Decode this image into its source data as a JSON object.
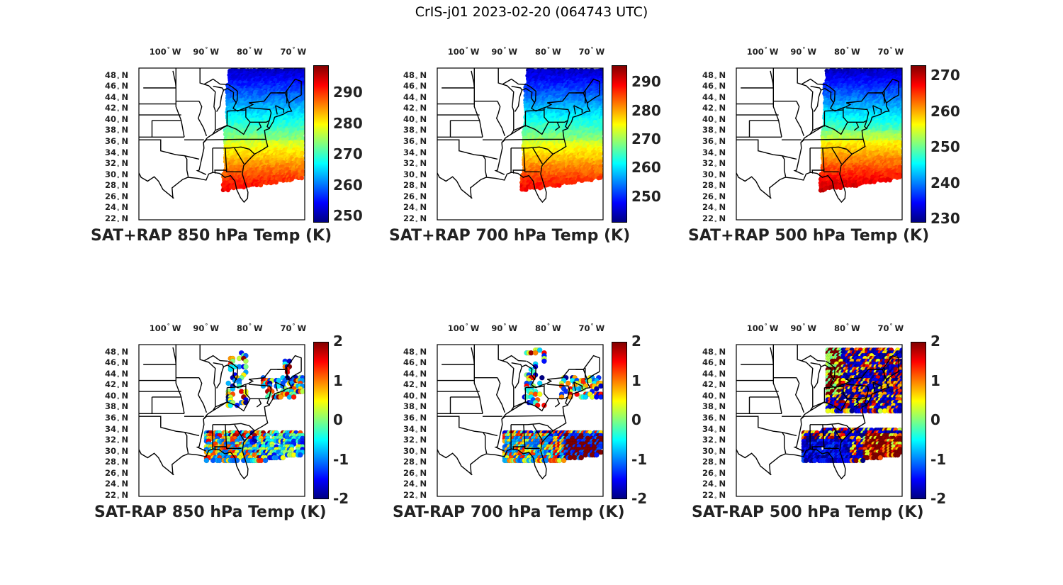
{
  "title": "CrIS-j01 2023-02-20 (064743 UTC)",
  "lon_ticks": [
    {
      "deg": "100",
      "hem": "W"
    },
    {
      "deg": "90",
      "hem": "W"
    },
    {
      "deg": "80",
      "hem": "W"
    },
    {
      "deg": "70",
      "hem": "W"
    }
  ],
  "lat_ticks": [
    {
      "deg": "48",
      "hem": "N"
    },
    {
      "deg": "46",
      "hem": "N"
    },
    {
      "deg": "44",
      "hem": "N"
    },
    {
      "deg": "42",
      "hem": "N"
    },
    {
      "deg": "40",
      "hem": "N"
    },
    {
      "deg": "38",
      "hem": "N"
    },
    {
      "deg": "36",
      "hem": "N"
    },
    {
      "deg": "34",
      "hem": "N"
    },
    {
      "deg": "32",
      "hem": "N"
    },
    {
      "deg": "30",
      "hem": "N"
    },
    {
      "deg": "28",
      "hem": "N"
    },
    {
      "deg": "26",
      "hem": "N"
    },
    {
      "deg": "24",
      "hem": "N"
    },
    {
      "deg": "22",
      "hem": "N"
    }
  ],
  "panels": [
    {
      "caption": "SAT+RAP 850 hPa Temp (K)",
      "kind": "sum",
      "level": "850",
      "cbar_ticks": [
        "290",
        "280",
        "270",
        "260",
        "250"
      ],
      "cbar_range": [
        248,
        299
      ]
    },
    {
      "caption": "SAT+RAP 700 hPa Temp (K)",
      "kind": "sum",
      "level": "700",
      "cbar_ticks": [
        "290",
        "280",
        "270",
        "260",
        "250"
      ],
      "cbar_range": [
        241,
        296
      ]
    },
    {
      "caption": "SAT+RAP 500 hPa Temp (K)",
      "kind": "sum",
      "level": "500",
      "cbar_ticks": [
        "270",
        "260",
        "250",
        "240",
        "230"
      ],
      "cbar_range": [
        229,
        273
      ]
    },
    {
      "caption": "SAT-RAP 850 hPa Temp (K)",
      "kind": "diff",
      "level": "850",
      "cbar_ticks": [
        "2",
        "1",
        "0",
        "-1",
        "-2"
      ],
      "cbar_range": [
        -2,
        2
      ]
    },
    {
      "caption": "SAT-RAP 700 hPa Temp (K)",
      "kind": "diff",
      "level": "700",
      "cbar_ticks": [
        "2",
        "1",
        "0",
        "-1",
        "-2"
      ],
      "cbar_range": [
        -2,
        2
      ]
    },
    {
      "caption": "SAT-RAP 500 hPa Temp (K)",
      "kind": "diff",
      "level": "500",
      "cbar_ticks": [
        "2",
        "1",
        "0",
        "-1",
        "-2"
      ],
      "cbar_range": [
        -2,
        2
      ]
    }
  ],
  "colormap": "jet",
  "colors": {
    "map_outline": "#000000",
    "frame": "#000000"
  }
}
